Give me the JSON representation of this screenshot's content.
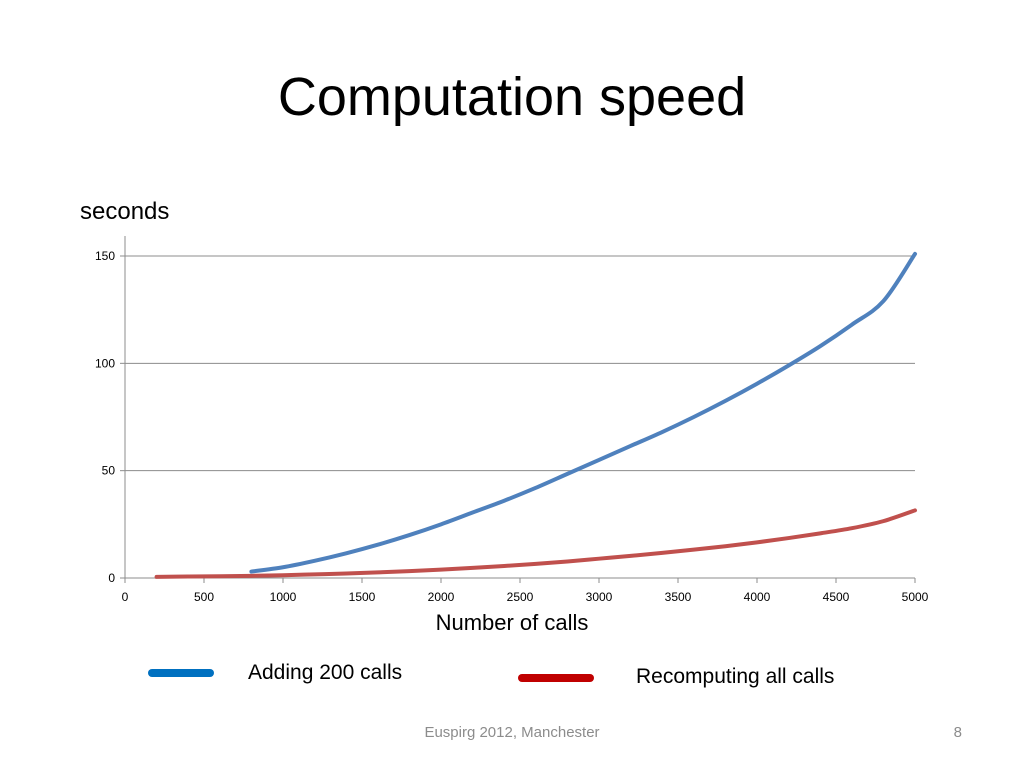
{
  "slide": {
    "title": "Computation speed",
    "footer": "Euspirg 2012, Manchester",
    "page_number": "8"
  },
  "chart_data": {
    "type": "line",
    "title": "",
    "ylabel": "seconds",
    "xlabel": "Number of calls",
    "xlim": [
      0,
      5000
    ],
    "ylim": [
      0,
      150
    ],
    "xticks": [
      "0",
      "500",
      "1000",
      "1500",
      "2000",
      "2500",
      "3000",
      "3500",
      "4000",
      "4500",
      "5000"
    ],
    "yticks": [
      "0",
      "50",
      "100",
      "150"
    ],
    "grid": true,
    "series": [
      {
        "name": "Adding 200 calls",
        "color": "#4f81bd",
        "legend_color": "#0070c0",
        "points": [
          [
            800,
            3
          ],
          [
            1000,
            5
          ],
          [
            1200,
            8
          ],
          [
            1400,
            11.5
          ],
          [
            1600,
            15.5
          ],
          [
            1800,
            20
          ],
          [
            2000,
            25
          ],
          [
            2200,
            30.5
          ],
          [
            2400,
            36
          ],
          [
            2600,
            42
          ],
          [
            2800,
            48.5
          ],
          [
            3000,
            55
          ],
          [
            3200,
            61.5
          ],
          [
            3400,
            68
          ],
          [
            3600,
            75
          ],
          [
            3800,
            82.5
          ],
          [
            4000,
            90.5
          ],
          [
            4200,
            99
          ],
          [
            4400,
            108
          ],
          [
            4600,
            118
          ],
          [
            4800,
            129
          ],
          [
            5000,
            151
          ]
        ]
      },
      {
        "name": "Recomputing all calls",
        "color": "#c0504d",
        "legend_color": "#c00000",
        "points": [
          [
            200,
            0.5
          ],
          [
            400,
            0.7
          ],
          [
            600,
            0.8
          ],
          [
            800,
            1
          ],
          [
            1000,
            1.3
          ],
          [
            1200,
            1.7
          ],
          [
            1400,
            2.1
          ],
          [
            1600,
            2.6
          ],
          [
            1800,
            3.2
          ],
          [
            2000,
            3.9
          ],
          [
            2200,
            4.7
          ],
          [
            2400,
            5.6
          ],
          [
            2600,
            6.6
          ],
          [
            2800,
            7.7
          ],
          [
            3000,
            9
          ],
          [
            3200,
            10.3
          ],
          [
            3400,
            11.7
          ],
          [
            3600,
            13.2
          ],
          [
            3800,
            14.8
          ],
          [
            4000,
            16.6
          ],
          [
            4200,
            18.6
          ],
          [
            4400,
            20.8
          ],
          [
            4600,
            23.2
          ],
          [
            4800,
            26.5
          ],
          [
            5000,
            31.5
          ]
        ]
      }
    ]
  }
}
